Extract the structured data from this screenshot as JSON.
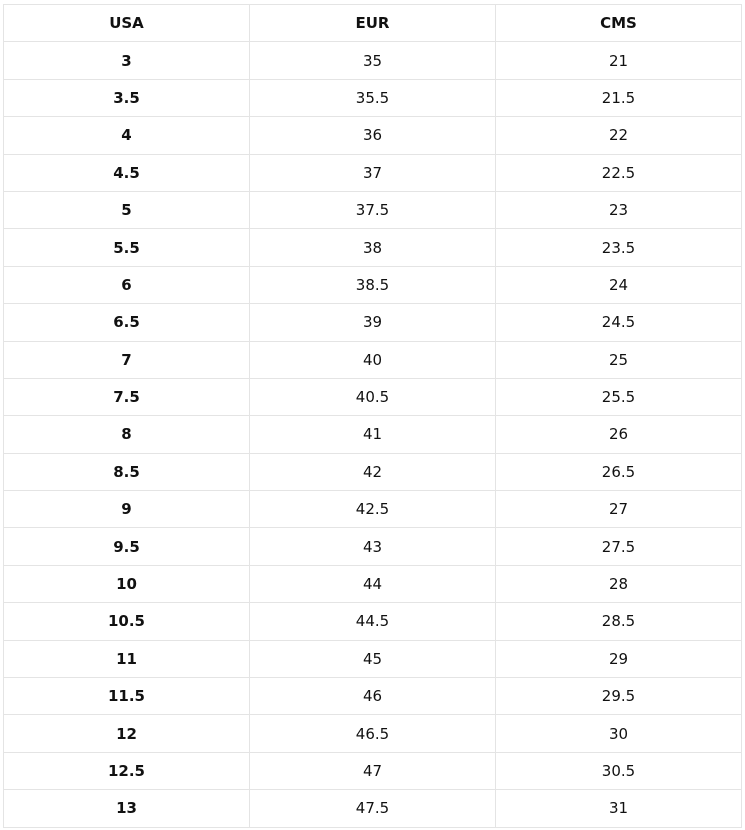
{
  "table": {
    "headers": [
      "USA",
      "EUR",
      "CMS"
    ],
    "rows": [
      [
        "3",
        "35",
        "21"
      ],
      [
        "3.5",
        "35.5",
        "21.5"
      ],
      [
        "4",
        "36",
        "22"
      ],
      [
        "4.5",
        "37",
        "22.5"
      ],
      [
        "5",
        "37.5",
        "23"
      ],
      [
        "5.5",
        "38",
        "23.5"
      ],
      [
        "6",
        "38.5",
        "24"
      ],
      [
        "6.5",
        "39",
        "24.5"
      ],
      [
        "7",
        "40",
        "25"
      ],
      [
        "7.5",
        "40.5",
        "25.5"
      ],
      [
        "8",
        "41",
        "26"
      ],
      [
        "8.5",
        "42",
        "26.5"
      ],
      [
        "9",
        "42.5",
        "27"
      ],
      [
        "9.5",
        "43",
        "27.5"
      ],
      [
        "10",
        "44",
        "28"
      ],
      [
        "10.5",
        "44.5",
        "28.5"
      ],
      [
        "11",
        "45",
        "29"
      ],
      [
        "11.5",
        "46",
        "29.5"
      ],
      [
        "12",
        "46.5",
        "30"
      ],
      [
        "12.5",
        "47",
        "30.5"
      ],
      [
        "13",
        "47.5",
        "31"
      ]
    ]
  }
}
